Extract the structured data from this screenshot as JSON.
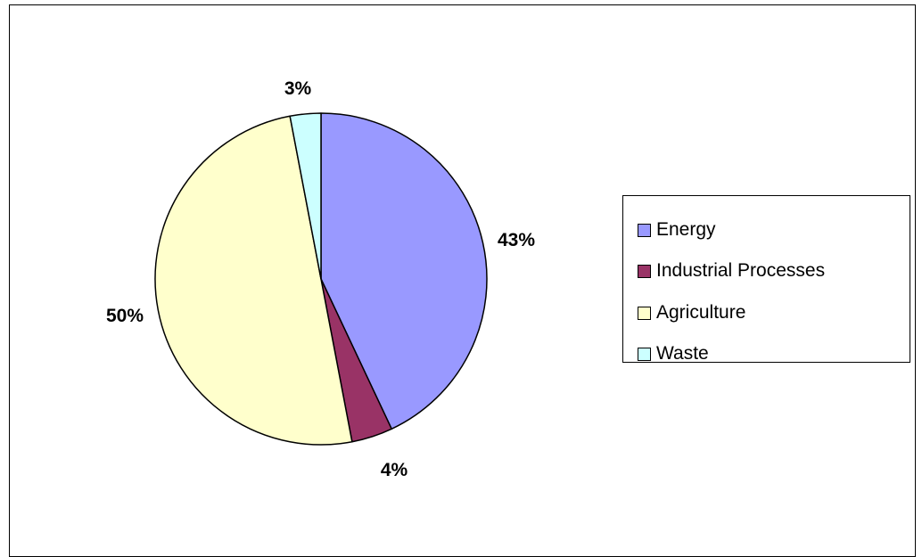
{
  "chart_data": {
    "type": "pie",
    "title": "",
    "categories": [
      "Energy",
      "Industrial Processes",
      "Agriculture",
      "Waste"
    ],
    "values": [
      43,
      4,
      50,
      3
    ],
    "labels": [
      "43%",
      "4%",
      "50%",
      "3%"
    ],
    "colors": [
      "#9999ff",
      "#993366",
      "#ffffcc",
      "#ccffff"
    ],
    "start_angle_deg": 0,
    "direction": "clockwise",
    "legend_position": "right"
  }
}
